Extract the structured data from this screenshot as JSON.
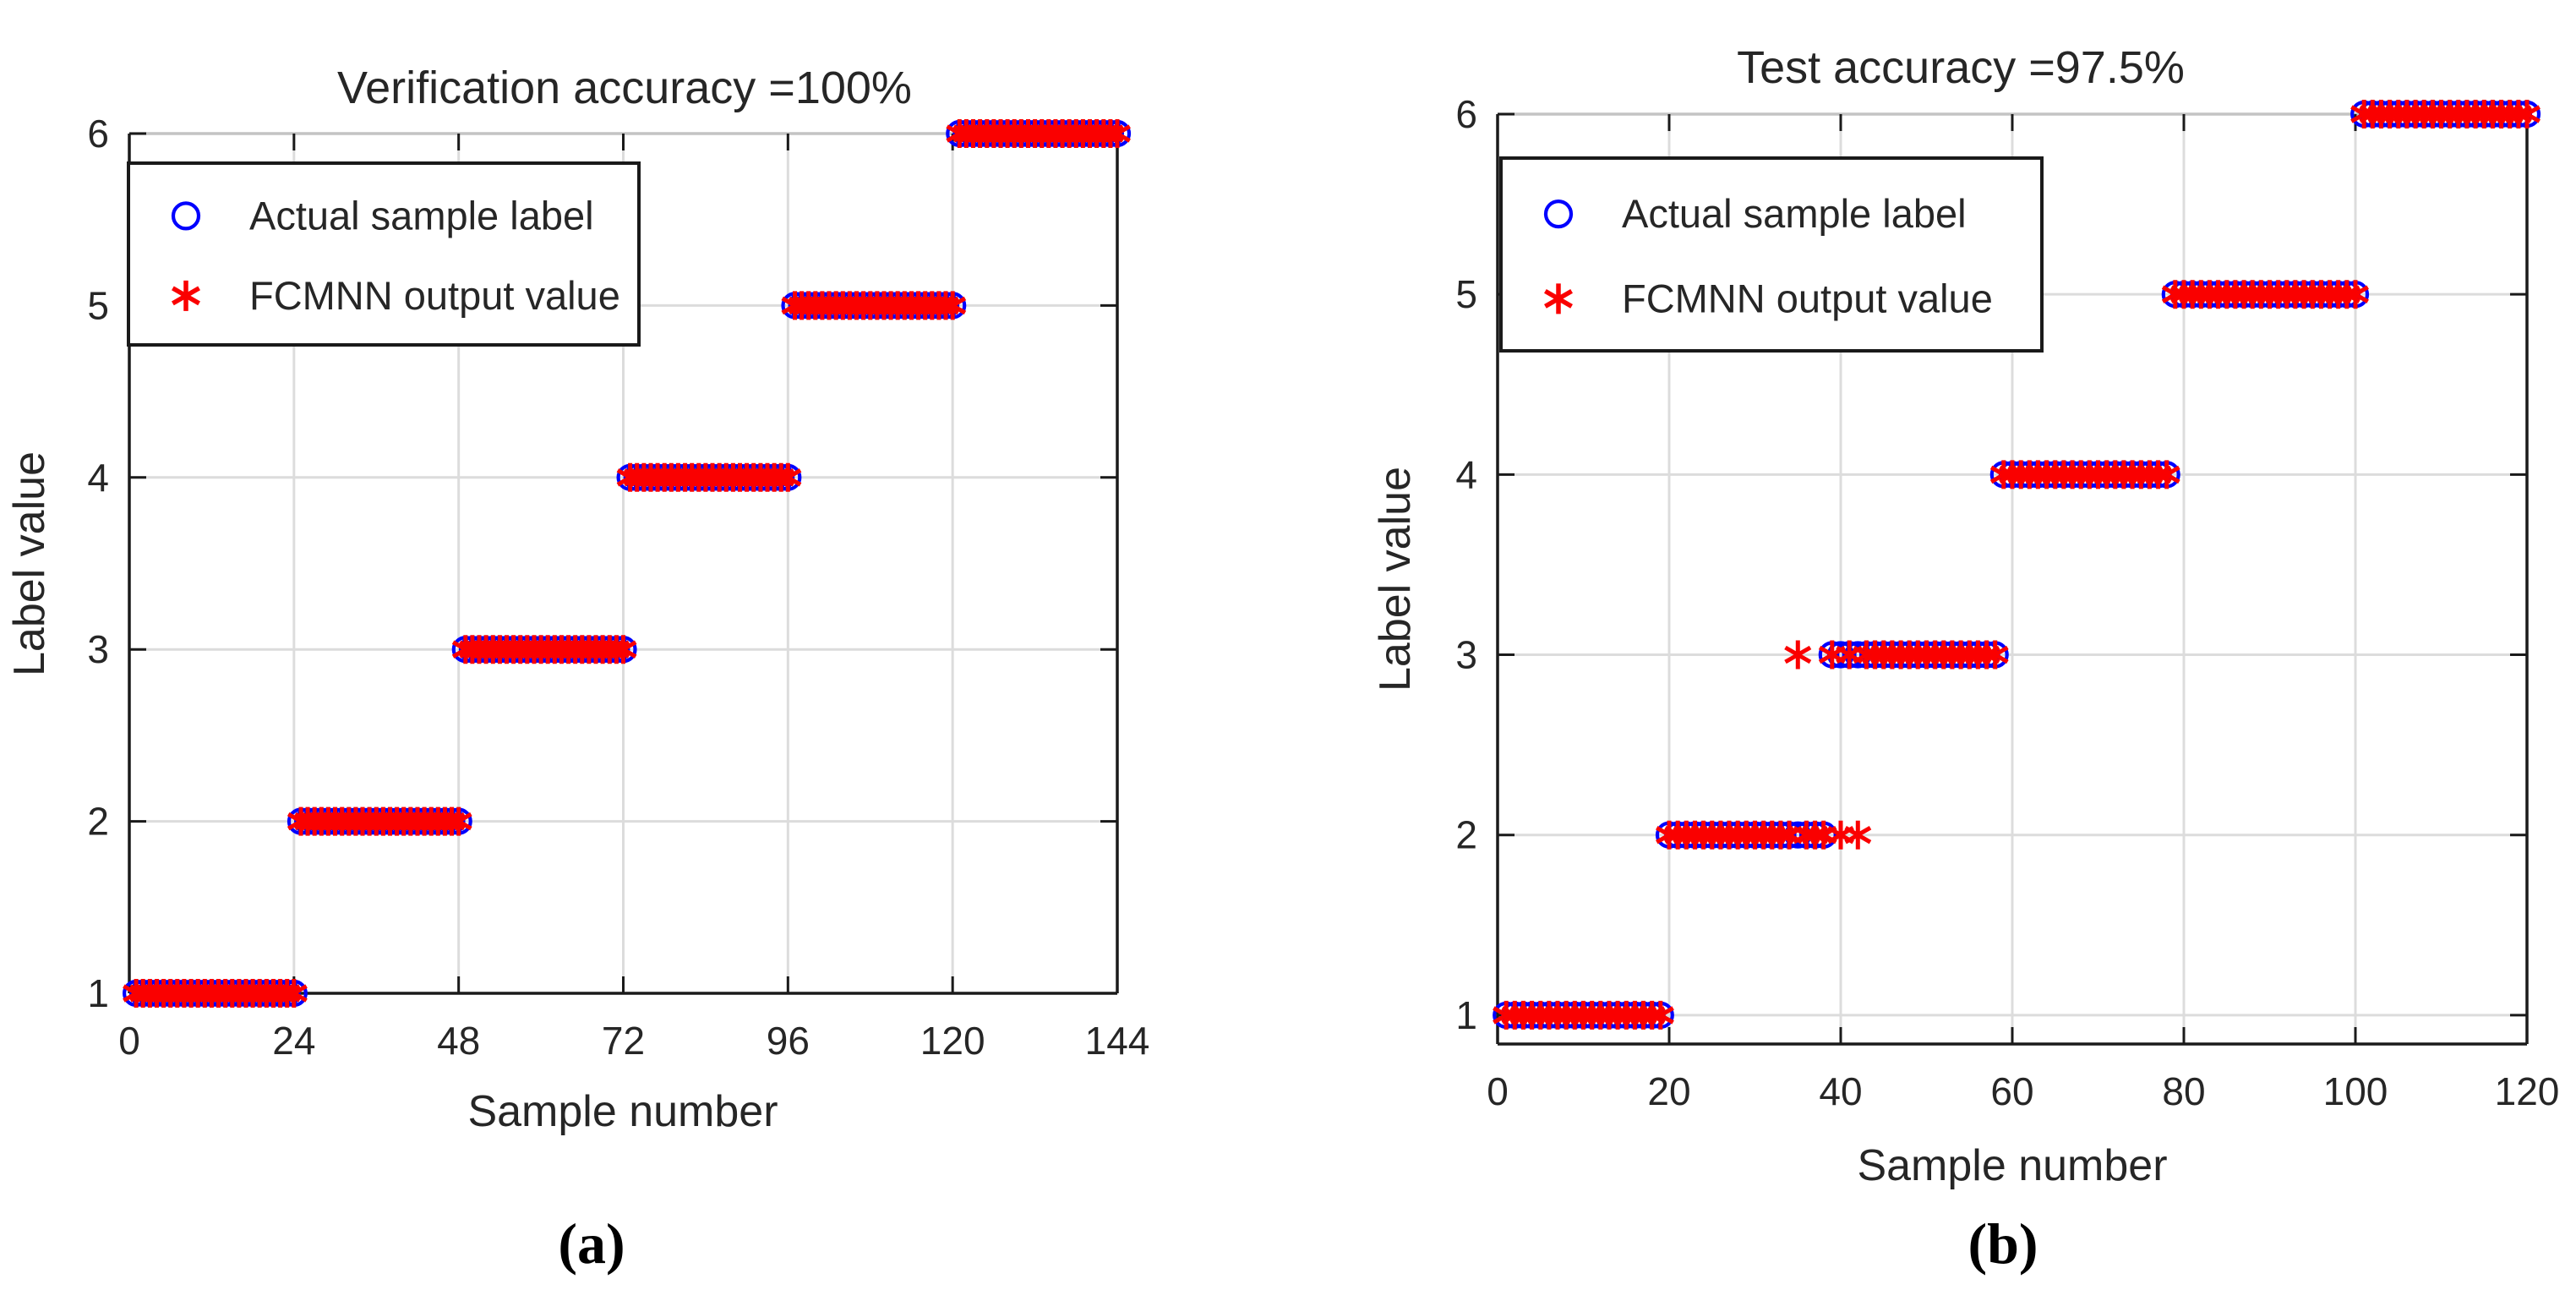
{
  "figure": {
    "background": "#FFFFFF",
    "caption_a": "(a)",
    "caption_b": "(b)"
  },
  "colors": {
    "actual_marker": "#0000FE",
    "predicted_marker": "#FA0000",
    "grid": "#DCDCDC",
    "axis_dark": "#1A1A1A",
    "axis_top": "#C4C4C4",
    "text": "#262626"
  },
  "chart_data": [
    {
      "type": "scatter",
      "title": "Verification accuracy =100%",
      "xlabel": "Sample number",
      "ylabel": "Label value",
      "caption": "(a)",
      "accuracy_percent": 100,
      "xlim": [
        0,
        144
      ],
      "ylim": [
        1,
        6
      ],
      "xticks": [
        0,
        24,
        48,
        72,
        96,
        120,
        144
      ],
      "yticks": [
        1,
        2,
        3,
        4,
        5,
        6
      ],
      "grid": true,
      "legend": {
        "position": "top-left",
        "entries": [
          {
            "label": "Actual sample label",
            "marker": "circle",
            "color": "#0000FE"
          },
          {
            "label": "FCMNN output value",
            "marker": "asterisk",
            "color": "#FA0000"
          }
        ]
      },
      "series": [
        {
          "name": "Actual sample label",
          "marker": "circle",
          "color": "#0000FE",
          "runs": [
            [
              1,
              24,
              1
            ],
            [
              25,
              48,
              2
            ],
            [
              49,
              72,
              3
            ],
            [
              73,
              96,
              4
            ],
            [
              97,
              120,
              5
            ],
            [
              121,
              144,
              6
            ]
          ]
        },
        {
          "name": "FCMNN output value",
          "marker": "asterisk",
          "color": "#FA0000",
          "runs": [
            [
              1,
              24,
              1
            ],
            [
              25,
              48,
              2
            ],
            [
              49,
              72,
              3
            ],
            [
              73,
              96,
              4
            ],
            [
              97,
              120,
              5
            ],
            [
              121,
              144,
              6
            ]
          ]
        }
      ],
      "misclassified_samples": []
    },
    {
      "type": "scatter",
      "title": "Test accuracy =97.5%",
      "xlabel": "Sample number",
      "ylabel": "Label value",
      "caption": "(b)",
      "accuracy_percent": 97.5,
      "xlim": [
        0,
        120
      ],
      "ylim": [
        0.84,
        6
      ],
      "xticks": [
        0,
        20,
        40,
        60,
        80,
        100,
        120
      ],
      "yticks": [
        1,
        2,
        3,
        4,
        5,
        6
      ],
      "grid": true,
      "legend": {
        "position": "top-left",
        "entries": [
          {
            "label": "Actual sample label",
            "marker": "circle",
            "color": "#0000FE"
          },
          {
            "label": "FCMNN output value",
            "marker": "asterisk",
            "color": "#FA0000"
          }
        ]
      },
      "series": [
        {
          "name": "Actual sample label",
          "marker": "circle",
          "color": "#0000FE",
          "runs": [
            [
              1,
              19,
              1
            ],
            [
              20,
              38,
              2
            ],
            [
              39,
              58,
              3
            ],
            [
              59,
              78,
              4
            ],
            [
              79,
              100,
              5
            ],
            [
              101,
              120,
              6
            ]
          ]
        },
        {
          "name": "FCMNN output value",
          "marker": "asterisk",
          "color": "#FA0000",
          "runs": [
            [
              1,
              19,
              1
            ],
            [
              20,
              34,
              2
            ],
            [
              36,
              38,
              2
            ],
            [
              40,
              40,
              2
            ],
            [
              42,
              42,
              2
            ],
            [
              35,
              35,
              3
            ],
            [
              39,
              39,
              3
            ],
            [
              41,
              41,
              3
            ],
            [
              43,
              58,
              3
            ],
            [
              59,
              78,
              4
            ],
            [
              79,
              100,
              5
            ],
            [
              101,
              120,
              6
            ]
          ]
        }
      ],
      "misclassified_samples": [
        {
          "sample": 35,
          "actual": 2,
          "predicted": 3
        },
        {
          "sample": 40,
          "actual": 3,
          "predicted": 2
        },
        {
          "sample": 42,
          "actual": 3,
          "predicted": 2
        }
      ]
    }
  ]
}
